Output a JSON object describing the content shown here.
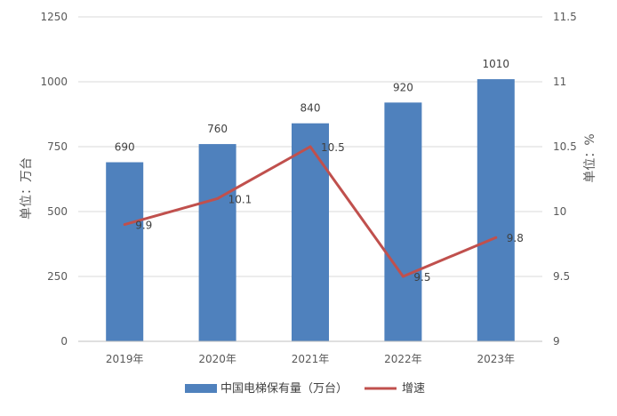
{
  "chart_data": {
    "type": "bar",
    "categories": [
      "2019年",
      "2020年",
      "2021年",
      "2022年",
      "2023年"
    ],
    "series": [
      {
        "name": "中国电梯保有量（万台）",
        "type": "bar",
        "axis": "left",
        "color": "#4f81bd",
        "values": [
          690,
          760,
          840,
          920,
          1010
        ]
      },
      {
        "name": "增速",
        "type": "line",
        "axis": "right",
        "color": "#c0504d",
        "values": [
          9.9,
          10.1,
          10.5,
          9.5,
          9.8
        ]
      }
    ],
    "ylabel": "单位：万台",
    "y2label": "单位：%",
    "ylim": [
      0,
      1250
    ],
    "y2lim": [
      9,
      11.5
    ],
    "yticks": [
      0,
      250,
      500,
      750,
      1000,
      1250
    ],
    "y2ticks": [
      "9",
      "9.5",
      "10",
      "10.5",
      "11",
      "11.5"
    ],
    "grid": true,
    "legend_position": "bottom"
  }
}
